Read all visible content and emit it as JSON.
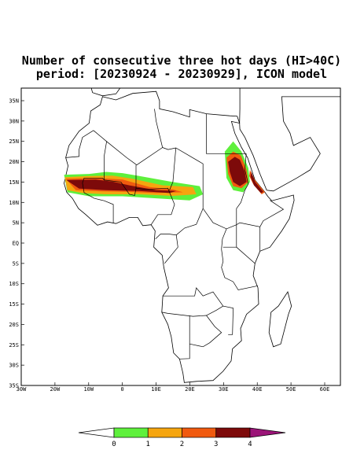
{
  "header": {
    "title_lines": [
      "Number of consecutive three hot days (HI>40C)",
      "period: [20230924 - 20230929], ICON model"
    ]
  },
  "map": {
    "longitude_labels": [
      "30W",
      "20W",
      "10W",
      "0",
      "10E",
      "20E",
      "30E",
      "40E",
      "50E",
      "60E"
    ],
    "latitude_labels": [
      "35N",
      "30N",
      "25N",
      "20N",
      "15N",
      "10N",
      "5N",
      "EQ",
      "5S",
      "10S",
      "15S",
      "20S",
      "25S",
      "30S",
      "35S"
    ]
  },
  "colorbar": {
    "levels": [
      0,
      1,
      2,
      3,
      4
    ],
    "colors": [
      "#ffffff",
      "#5ef03c",
      "#f5a50f",
      "#f05a0f",
      "#7d0a0a",
      "#9b1478"
    ]
  }
}
